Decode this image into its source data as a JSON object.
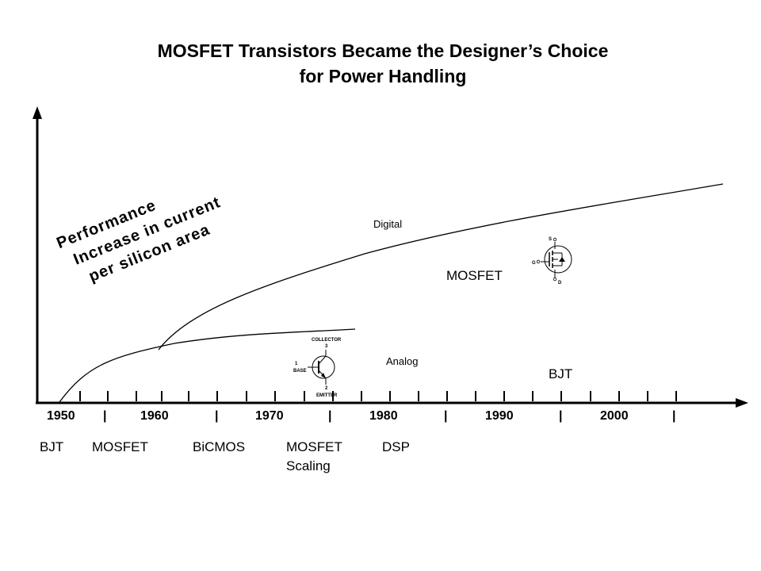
{
  "title": {
    "line1": "MOSFET Transistors Became the Designer’s Choice",
    "line2": "for Power Handling"
  },
  "y_axis_label": {
    "line1": "Performance",
    "line2": "Increase in current",
    "line3": "per silicon area"
  },
  "curves": {
    "digital": "Digital",
    "analog": "Analog",
    "mosfet": "MOSFET",
    "bjt": "BJT"
  },
  "bjt_symbol": {
    "collector": "COLLECTOR",
    "collector_pin": "3",
    "base_pin": "1",
    "base": "BASE",
    "emitter_pin": "2",
    "emitter": "EMITTER"
  },
  "mosfet_symbol": {
    "source": "S",
    "gate": "G",
    "drain": "D"
  },
  "timeline": {
    "years": [
      "1950",
      "1960",
      "1970",
      "1980",
      "1990",
      "2000"
    ],
    "separator": "|"
  },
  "technologies": {
    "bjt": "BJT",
    "mosfet": "MOSFET",
    "bicmos": "BiCMOS",
    "mosfet_scaling_line1": "MOSFET",
    "mosfet_scaling_line2": "Scaling",
    "dsp": "DSP"
  }
}
